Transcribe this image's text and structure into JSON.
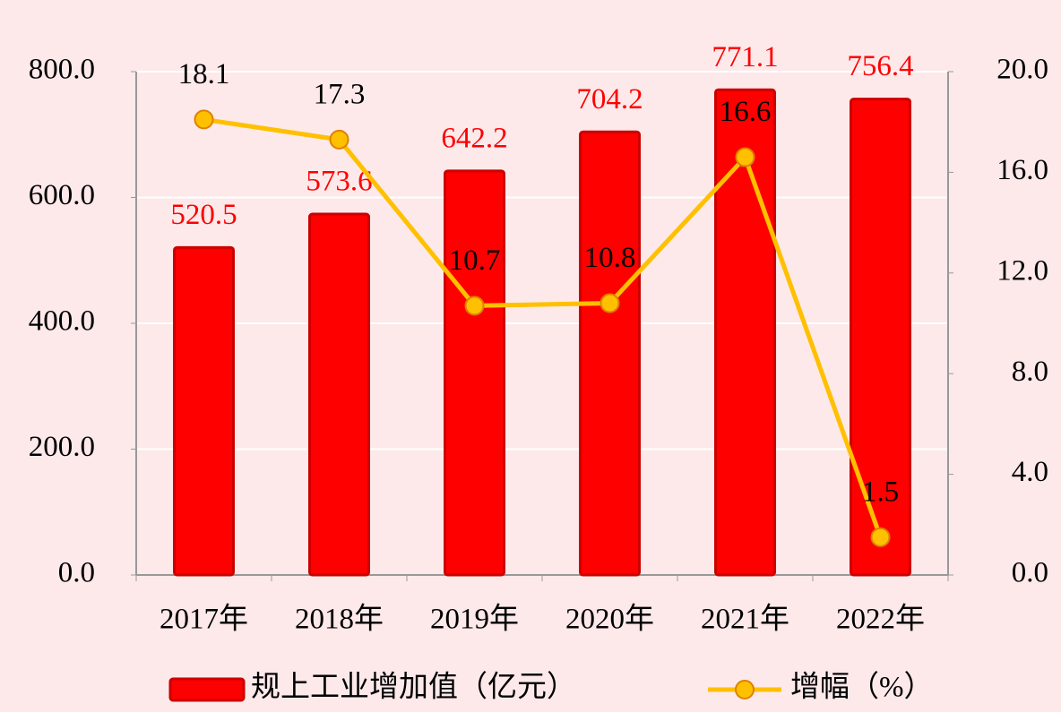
{
  "chart_data": {
    "type": "bar-line",
    "categories": [
      "2017年",
      "2018年",
      "2019年",
      "2020年",
      "2021年",
      "2022年"
    ],
    "series": [
      {
        "name": "规上工业增加值（亿元）",
        "color": "#ff0000",
        "values": [
          520.5,
          573.6,
          642.2,
          704.2,
          771.1,
          756.4
        ]
      },
      {
        "name": "增幅（%）",
        "color": "#ffc000",
        "axis": "y2",
        "values": [
          18.1,
          17.3,
          10.7,
          10.8,
          16.6,
          1.5
        ]
      }
    ],
    "ylim": [
      0,
      800
    ],
    "yticks": [
      {
        "value": 0,
        "label": "0.0"
      },
      {
        "value": 200,
        "label": "200.0"
      },
      {
        "value": 400,
        "label": "400.0"
      },
      {
        "value": 600,
        "label": "600.0"
      },
      {
        "value": 800,
        "label": "800.0"
      }
    ],
    "y2lim": [
      0,
      20
    ],
    "y2ticks": [
      {
        "value": 0,
        "label": "0.0"
      },
      {
        "value": 4,
        "label": "4.0"
      },
      {
        "value": 8,
        "label": "8.0"
      },
      {
        "value": 12,
        "label": "12.0"
      },
      {
        "value": 16,
        "label": "16.0"
      },
      {
        "value": 20,
        "label": "20.0"
      }
    ],
    "grid": true,
    "legend": "bottom"
  }
}
